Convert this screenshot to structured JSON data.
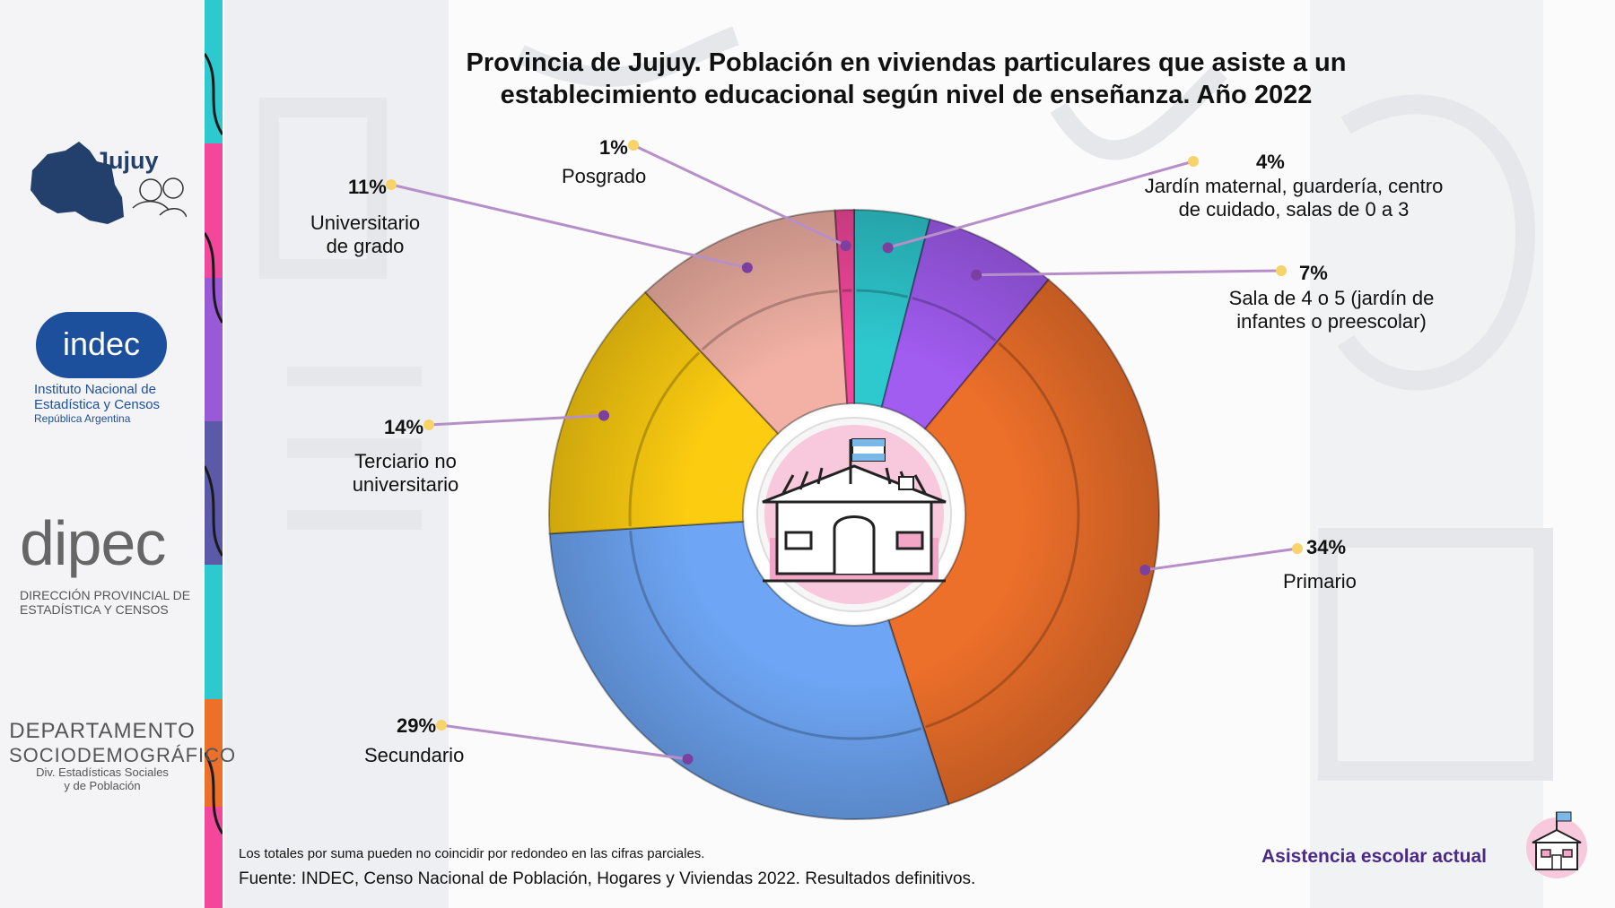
{
  "title": "Provincia de Jujuy. Población en viviendas particulares que asiste a un establecimiento educacional según nivel de enseñanza. Año 2022",
  "logos": {
    "jujuy": "Jujuy",
    "indec_name": "indec",
    "indec_line1": "Instituto Nacional de",
    "indec_line2": "Estadística y Censos",
    "indec_line3": "República Argentina",
    "dipec_name": "dipec",
    "dipec_line1": "DIRECCIÓN PROVINCIAL DE",
    "dipec_line2": "ESTADÍSTICA Y CENSOS",
    "depto_line1": "DEPARTAMENTO",
    "depto_line2": "SOCIODEMOGRÁFICO",
    "depto_line3": "Div. Estadísticas Sociales",
    "depto_line4": "y de Población"
  },
  "chart_data": {
    "type": "pie",
    "style": "donut",
    "categories": [
      "Jardín maternal, guardería, centro de cuidado, salas de 0 a 3",
      "Sala de 4 o 5 (jardín de infantes o preescolar)",
      "Primario",
      "Secundario",
      "Terciario no universitario",
      "Universitario de grado",
      "Posgrado"
    ],
    "values": [
      4,
      7,
      34,
      29,
      14,
      11,
      1
    ],
    "labels": [
      "4%",
      "7%",
      "34%",
      "29%",
      "14%",
      "11%",
      "1%"
    ],
    "colors": [
      "#2ec8cf",
      "#a15cf0",
      "#ec6f2a",
      "#6ea6f5",
      "#fccc10",
      "#f2b1a4",
      "#f2479a"
    ],
    "legend": "none"
  },
  "slice_labels": {
    "jardin": [
      "Jardín maternal, guardería, centro",
      "de cuidado, salas de 0 a 3"
    ],
    "sala": [
      "Sala de 4 o 5 (jardín de",
      "infantes o preescolar)"
    ],
    "primario": [
      "Primario"
    ],
    "secundario": [
      "Secundario"
    ],
    "terciario": [
      "Terciario no",
      "universitario"
    ],
    "universitario": [
      "Universitario",
      "de grado"
    ],
    "posgrado": [
      "Posgrado"
    ]
  },
  "note": "Los totales por suma pueden no coincidir por redondeo en las cifras parciales.",
  "source": "Fuente: INDEC, Censo Nacional de Población, Hogares y Viviendas 2022. Resultados definitivos.",
  "footer_tag": "Asistencia escolar actual",
  "icons": {
    "center": "school-building-icon",
    "footer": "school-icon"
  }
}
